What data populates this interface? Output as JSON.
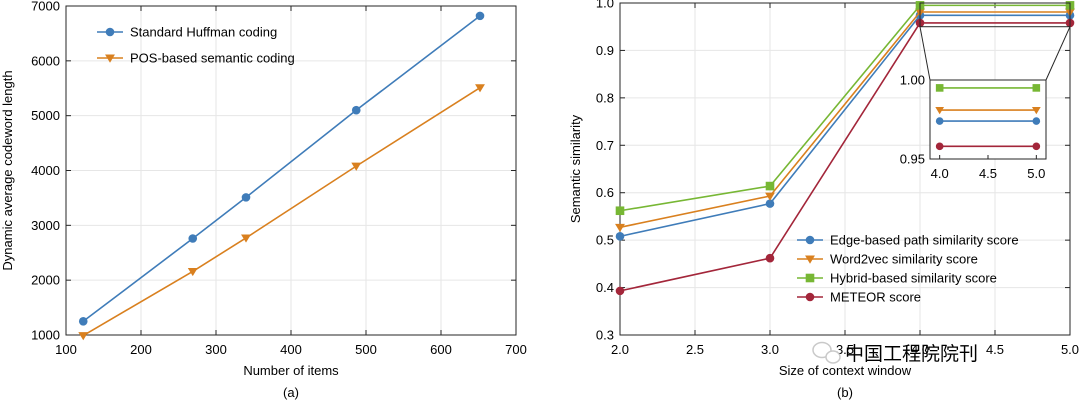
{
  "chart_data": [
    {
      "type": "line",
      "panel_caption": "(a)",
      "xlabel": "Number of items",
      "ylabel": "Dynamic average codeword length",
      "xlim": [
        100,
        700
      ],
      "ylim": [
        1000,
        7000
      ],
      "xticks": [
        100,
        200,
        300,
        400,
        500,
        600,
        700
      ],
      "yticks": [
        1000,
        2000,
        3000,
        4000,
        5000,
        6000,
        7000
      ],
      "grid": true,
      "legend_position": "top-left",
      "series": [
        {
          "name": "Standard Huffman coding",
          "color": "#3f7cb9",
          "marker": "circle",
          "x": [
            123,
            269,
            340,
            487,
            652
          ],
          "y": [
            1250,
            2760,
            3510,
            5100,
            6820
          ]
        },
        {
          "name": "POS-based semantic coding",
          "color": "#d9801f",
          "marker": "triangle-down",
          "x": [
            123,
            269,
            340,
            487,
            652
          ],
          "y": [
            990,
            2160,
            2770,
            4080,
            5510
          ]
        }
      ]
    },
    {
      "type": "line",
      "panel_caption": "(b)",
      "xlabel": "Size of context window",
      "ylabel": "Semantic similarity",
      "xlim": [
        2.0,
        5.0
      ],
      "ylim": [
        0.3,
        1.0
      ],
      "xticks": [
        "2.0",
        "2.5",
        "3.0",
        "3.5",
        "4.0",
        "4.5",
        "5.0"
      ],
      "yticks": [
        "0.3",
        "0.4",
        "0.5",
        "0.6",
        "0.7",
        "0.8",
        "0.9",
        "1.0"
      ],
      "grid": true,
      "legend_position": "bottom-right",
      "series": [
        {
          "name": "Edge-based path similarity score",
          "color": "#3f7cb9",
          "marker": "circle",
          "x": [
            2,
            3,
            4,
            5
          ],
          "y": [
            0.508,
            0.577,
            0.974,
            0.974
          ]
        },
        {
          "name": "Word2vec similarity score",
          "color": "#d9801f",
          "marker": "triangle-down",
          "x": [
            2,
            3,
            4,
            5
          ],
          "y": [
            0.527,
            0.593,
            0.981,
            0.981
          ]
        },
        {
          "name": "Hybrid-based similarity score",
          "color": "#77b734",
          "marker": "square",
          "x": [
            2,
            3,
            4,
            5
          ],
          "y": [
            0.562,
            0.614,
            0.995,
            0.995
          ]
        },
        {
          "name": "METEOR score",
          "color": "#a3263a",
          "marker": "circle",
          "x": [
            2,
            3,
            4,
            5
          ],
          "y": [
            0.393,
            0.462,
            0.958,
            0.958
          ]
        }
      ],
      "inset": {
        "xlim": [
          3.9,
          5.1
        ],
        "ylim": [
          0.95,
          1.0
        ],
        "xticks": [
          "4.0",
          "4.5",
          "5.0"
        ],
        "yticks": [
          "0.95",
          "1.00"
        ],
        "x": [
          4,
          5
        ]
      }
    }
  ],
  "watermark": {
    "text": "中国工程院院刊",
    "icon": "wechat-icon"
  }
}
